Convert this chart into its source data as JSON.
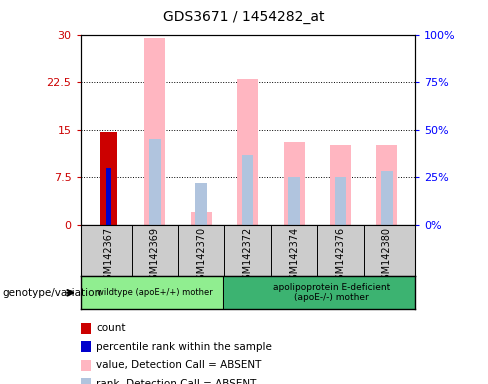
{
  "title": "GDS3671 / 1454282_at",
  "samples": [
    "GSM142367",
    "GSM142369",
    "GSM142370",
    "GSM142372",
    "GSM142374",
    "GSM142376",
    "GSM142380"
  ],
  "count_values": [
    14.7,
    null,
    null,
    null,
    null,
    null,
    null
  ],
  "percentile_values": [
    9.0,
    null,
    null,
    null,
    null,
    null,
    null
  ],
  "absent_value_bars": [
    null,
    29.5,
    2.0,
    23.0,
    13.0,
    12.5,
    12.5
  ],
  "absent_rank_bars": [
    null,
    13.5,
    6.5,
    11.0,
    7.5,
    7.5,
    8.5
  ],
  "ylim_left": [
    0,
    30
  ],
  "ylim_right": [
    0,
    100
  ],
  "yticks_left": [
    0,
    7.5,
    15,
    22.5,
    30
  ],
  "yticks_right": [
    0,
    25,
    50,
    75,
    100
  ],
  "ytick_labels_left": [
    "0",
    "7.5",
    "15",
    "22.5",
    "30"
  ],
  "ytick_labels_right": [
    "0%",
    "25%",
    "50%",
    "75%",
    "100%"
  ],
  "group1_label": "wildtype (apoE+/+) mother",
  "group2_label": "apolipoprotein E-deficient\n(apoE-/-) mother",
  "group1_color": "#90EE90",
  "group2_color": "#3CB371",
  "genotype_label": "genotype/variation",
  "color_count": "#CC0000",
  "color_percentile": "#0000CC",
  "color_absent_value": "#FFB6C1",
  "color_absent_rank": "#B0C4DE",
  "legend_items": [
    {
      "label": "count",
      "color": "#CC0000"
    },
    {
      "label": "percentile rank within the sample",
      "color": "#0000CC"
    },
    {
      "label": "value, Detection Call = ABSENT",
      "color": "#FFB6C1"
    },
    {
      "label": "rank, Detection Call = ABSENT",
      "color": "#B0C4DE"
    }
  ],
  "background_color": "#FFFFFF",
  "tick_color_left": "#CC0000",
  "tick_color_right": "#0000FF"
}
